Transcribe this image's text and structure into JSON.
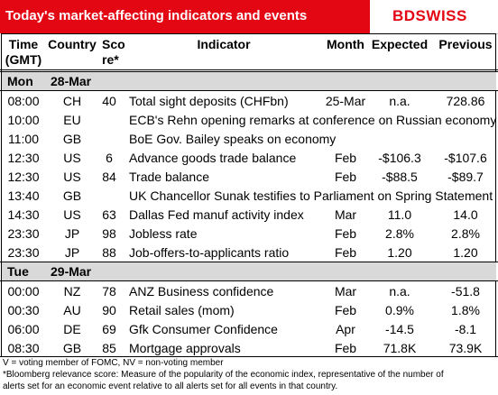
{
  "header": {
    "title": "Today's market-affecting indicators and events",
    "logo": "BDSWISS"
  },
  "columns": [
    [
      "Time",
      "(GMT)"
    ],
    [
      "Country"
    ],
    [
      "Sco",
      "re*"
    ],
    [
      "Indicator"
    ],
    [
      "Month"
    ],
    [
      "Expected"
    ],
    [
      "Previous"
    ]
  ],
  "days": [
    {
      "day": "Mon",
      "date": "28-Mar",
      "rows": [
        [
          "08:00",
          "CH",
          "40",
          "Total sight deposits (CHFbn)",
          "25-Mar",
          "n.a.",
          "728.86"
        ],
        [
          "10:00",
          "EU",
          null,
          "ECB's Rehn opening remarks at conference on Russian economy",
          null,
          null,
          null
        ],
        [
          "11:00",
          "GB",
          null,
          "BoE Gov. Bailey speaks on economy",
          null,
          null,
          null
        ],
        [
          "12:30",
          "US",
          "6",
          "Advance goods trade balance",
          "Feb",
          "-$106.3",
          "-$107.6"
        ],
        [
          "12:30",
          "US",
          "84",
          "Trade balance",
          "Feb",
          "-$88.5",
          "-$89.7"
        ],
        [
          "13:40",
          "GB",
          null,
          "UK Chancellor Sunak testifies to Parliament on Spring Statement",
          null,
          null,
          null
        ],
        [
          "14:30",
          "US",
          "63",
          "Dallas Fed manuf activity index",
          "Mar",
          "11.0",
          "14.0"
        ],
        [
          "23:30",
          "JP",
          "98",
          "Jobless rate",
          "Feb",
          "2.8%",
          "2.8%"
        ],
        [
          "23:30",
          "JP",
          "88",
          "Job-offers-to-applicants ratio",
          "Feb",
          "1.20",
          "1.20"
        ]
      ]
    },
    {
      "day": "Tue",
      "date": "29-Mar",
      "rows": [
        [
          "00:00",
          "NZ",
          "78",
          "ANZ Business confidence",
          "Mar",
          "n.a.",
          "-51.8"
        ],
        [
          "00:30",
          "AU",
          "90",
          "Retail sales (mom)",
          "Feb",
          "0.9%",
          "1.8%"
        ],
        [
          "06:00",
          "DE",
          "69",
          "Gfk Consumer Confidence",
          "Apr",
          "-14.5",
          "-8.1"
        ],
        [
          "08:30",
          "GB",
          "85",
          "Mortgage approvals",
          "Feb",
          "71.8K",
          "73.9K"
        ]
      ]
    }
  ],
  "footnotes": [
    "V = voting member of FOMC, NV = non-voting member",
    "*Bloomberg relevance score:  Measure of the popularity of the economic index, representative of the number of",
    "alerts set for an economic event relative to all alerts set for all events in that country."
  ]
}
